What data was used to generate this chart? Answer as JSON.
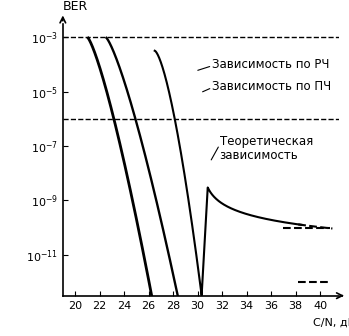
{
  "xlabel": "C/N, дБ",
  "ylabel": "BER",
  "xlim": [
    19.0,
    41.5
  ],
  "ylim_exp": [
    -12.5,
    -2.5
  ],
  "xticks": [
    20,
    22,
    24,
    26,
    28,
    30,
    32,
    34,
    36,
    38,
    40
  ],
  "yticks_exp": [
    -3,
    -4,
    -5,
    -6,
    -7,
    -8,
    -9,
    -10,
    -11,
    -12
  ],
  "dashed_hlines_exp": [
    -3,
    -6
  ],
  "label_rch": "Зависимость по РЧ",
  "label_pch": "Зависимость по ПЧ",
  "label_theor_line1": "Теоретическая",
  "label_theor_line2": "зависимость",
  "curve_color": "#000000",
  "bg_color": "#ffffff",
  "font_size": 8.0,
  "label_font_size": 8.5
}
